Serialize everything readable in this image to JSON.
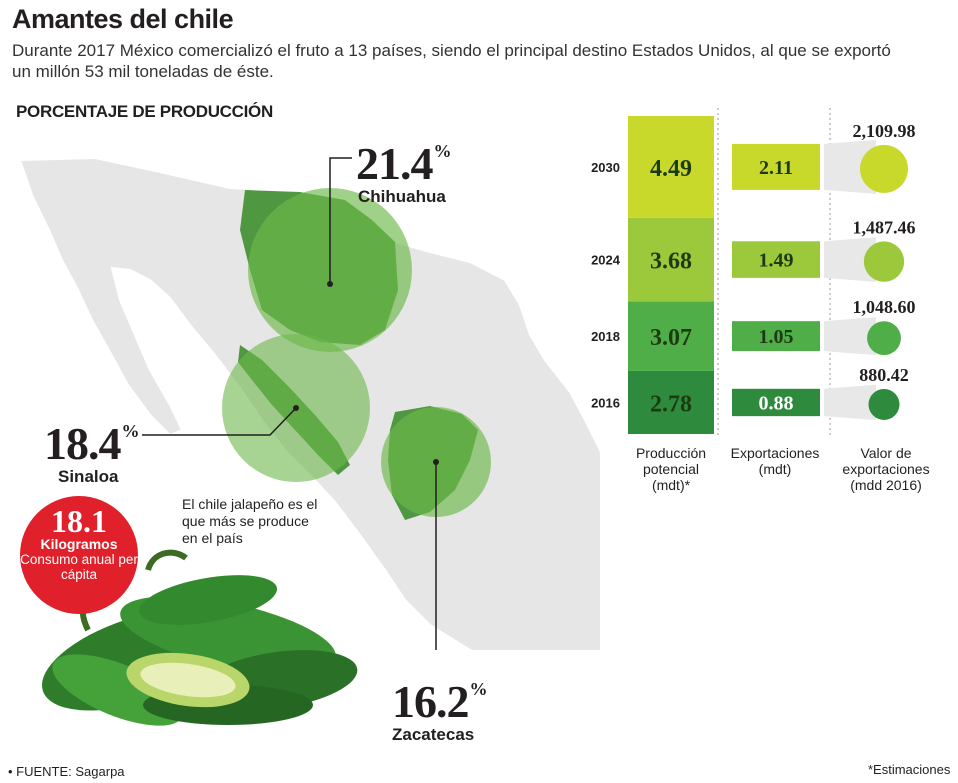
{
  "header": {
    "title": "Amantes del chile",
    "subtitle": "Durante 2017 México comercializó el fruto a 13 países, siendo el principal destino Estados Unidos, al que se exportó un millón 53 mil toneladas de éste."
  },
  "map": {
    "section_label": "PORCENTAJE DE PRODUCCIÓN",
    "states": [
      {
        "name": "Chihuahua",
        "value": 21.4
      },
      {
        "name": "Sinaloa",
        "value": 18.4
      },
      {
        "name": "Zacatecas",
        "value": 16.2
      }
    ],
    "pct_symbol": "%"
  },
  "consumption": {
    "value": "18.1",
    "unit": "Kilogramos",
    "description": "Consumo anual per cápita",
    "note": "El chile jalapeño es el que más se produce en el país"
  },
  "chart_data": {
    "type": "table",
    "years": [
      "2030",
      "2024",
      "2018",
      "2016"
    ],
    "columns": [
      {
        "label": "Producción potencial (mdt)*",
        "values": [
          4.49,
          3.68,
          3.07,
          2.78
        ]
      },
      {
        "label": "Exportaciones (mdt)",
        "values": [
          2.11,
          1.49,
          1.05,
          0.88
        ]
      },
      {
        "label": "Valor de exportaciones (mdd 2016)",
        "values": [
          "2,109.98",
          "1,487.46",
          "1,048.60",
          "880.42"
        ],
        "raw": [
          2109.98,
          1487.46,
          1048.6,
          880.42
        ]
      }
    ],
    "colors": [
      "#c8d92c",
      "#9cc83b",
      "#4fae48",
      "#2e8b3e"
    ]
  },
  "footer": {
    "source": "• FUENTE: Sagarpa",
    "note": "*Estimaciones"
  }
}
